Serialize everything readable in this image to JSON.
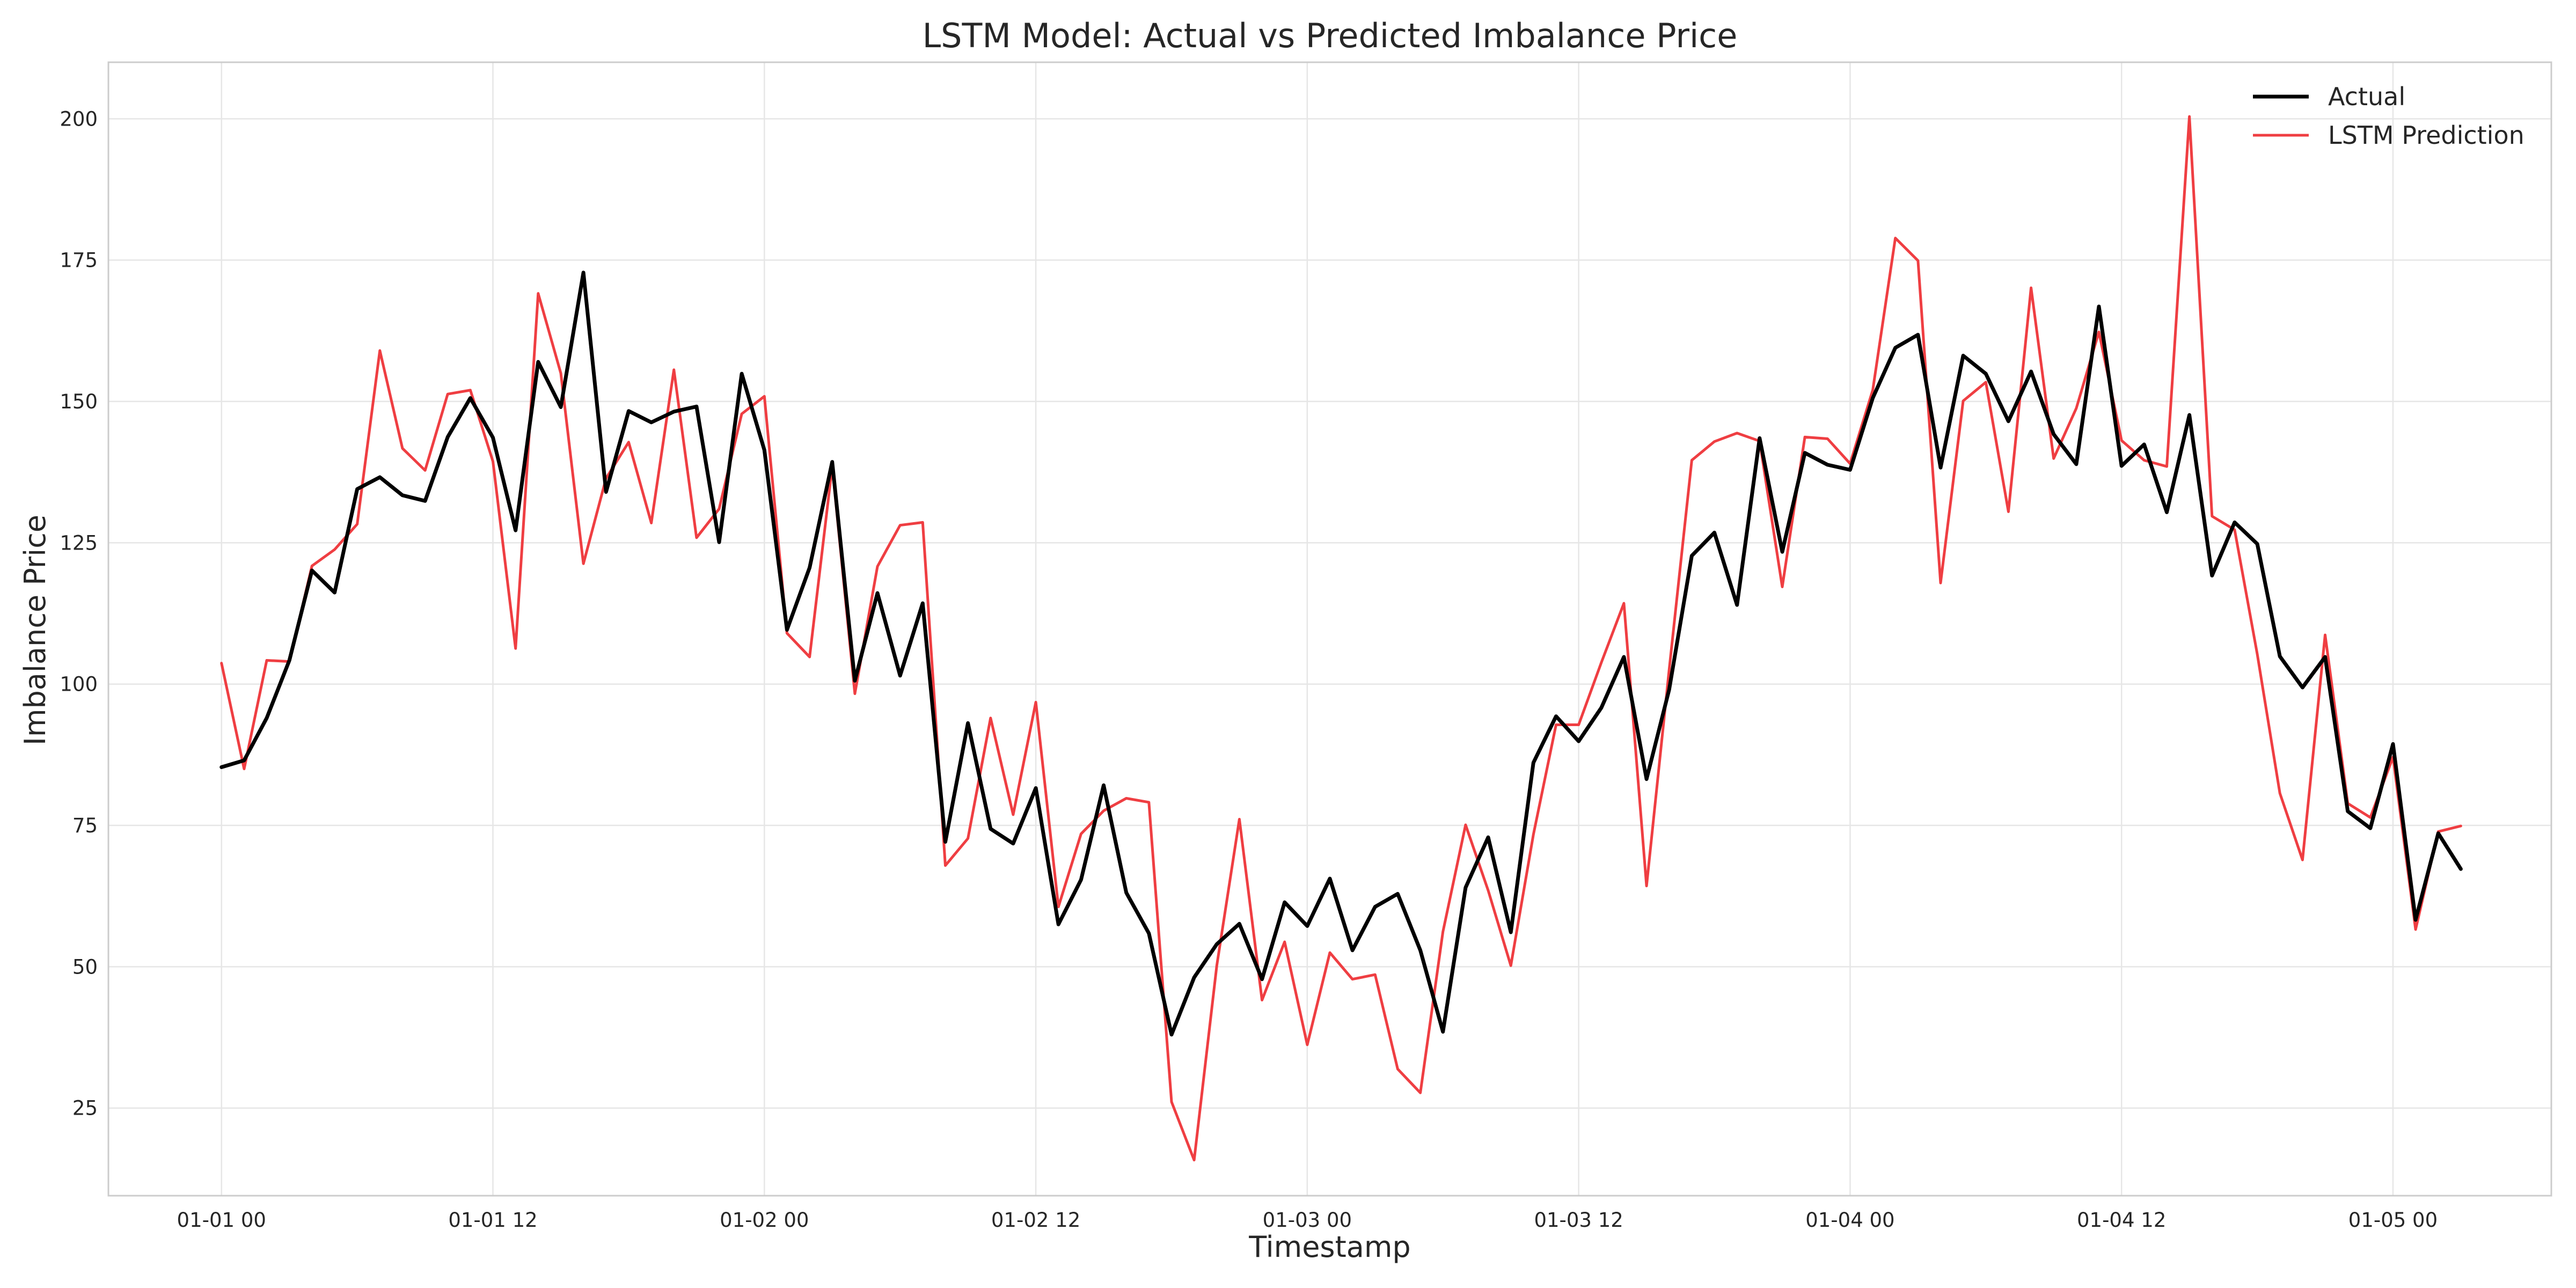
{
  "chart_data": {
    "type": "line",
    "title": "LSTM Model: Actual vs Predicted Imbalance Price",
    "xlabel": "Timestamp",
    "ylabel": "Imbalance Price",
    "x_start": "2024-01-01 00:00",
    "x_step_hours": 1,
    "xlim_hours": [
      -5,
      103
    ],
    "ylim": [
      9.5,
      210
    ],
    "x_ticks": [
      {
        "hour": 0,
        "label": "01-01 00"
      },
      {
        "hour": 12,
        "label": "01-01 12"
      },
      {
        "hour": 24,
        "label": "01-02 00"
      },
      {
        "hour": 36,
        "label": "01-02 12"
      },
      {
        "hour": 48,
        "label": "01-03 00"
      },
      {
        "hour": 60,
        "label": "01-03 12"
      },
      {
        "hour": 72,
        "label": "01-04 00"
      },
      {
        "hour": 84,
        "label": "01-04 12"
      },
      {
        "hour": 96,
        "label": "01-05 00"
      }
    ],
    "y_ticks": [
      25,
      50,
      75,
      100,
      125,
      150,
      175,
      200
    ],
    "grid": true,
    "legend_position": "top-right",
    "series": [
      {
        "name": "Actual",
        "color": "#000000",
        "values": [
          85.3,
          86.5,
          94.0,
          104.2,
          120.1,
          116.2,
          134.5,
          136.6,
          133.4,
          132.4,
          143.7,
          150.6,
          143.6,
          127.2,
          157.0,
          149.0,
          172.8,
          134.0,
          148.3,
          146.3,
          148.2,
          149.1,
          125.1,
          154.9,
          141.4,
          109.6,
          120.6,
          139.3,
          100.6,
          116.1,
          101.5,
          114.3,
          72.1,
          93.1,
          74.4,
          71.8,
          81.6,
          57.5,
          65.4,
          82.1,
          63.1,
          55.9,
          38.0,
          48.1,
          54.0,
          57.6,
          47.8,
          61.4,
          57.2,
          65.6,
          52.9,
          60.6,
          62.9,
          52.9,
          38.5,
          64.0,
          72.9,
          56.1,
          86.1,
          94.3,
          89.9,
          95.8,
          104.8,
          83.2,
          99.0,
          122.7,
          126.8,
          114.0,
          143.5,
          123.4,
          140.9,
          138.8,
          137.9,
          150.6,
          159.5,
          161.8,
          138.3,
          158.1,
          154.9,
          146.5,
          155.3,
          144.2,
          138.9,
          166.8,
          138.6,
          142.4,
          130.4,
          147.6,
          119.2,
          128.6,
          124.8,
          104.9,
          99.4,
          104.8,
          77.5,
          74.5,
          89.4,
          58.3,
          73.6,
          67.3
        ]
      },
      {
        "name": "LSTM Prediction",
        "color": "#ef3e42",
        "values": [
          103.7,
          85.0,
          104.2,
          104.0,
          120.9,
          123.8,
          128.3,
          159.0,
          141.7,
          137.8,
          151.3,
          152.0,
          139.4,
          106.3,
          169.1,
          155.0,
          121.3,
          136.4,
          142.8,
          128.5,
          155.6,
          125.9,
          131.0,
          147.8,
          150.9,
          109.0,
          104.8,
          138.5,
          98.3,
          120.8,
          128.1,
          128.6,
          67.9,
          72.7,
          94.0,
          76.9,
          96.8,
          60.6,
          73.5,
          77.6,
          79.8,
          79.1,
          26.1,
          15.8,
          50.2,
          76.1,
          44.1,
          54.4,
          36.2,
          52.5,
          47.8,
          48.6,
          31.9,
          27.7,
          56.2,
          75.1,
          63.5,
          50.2,
          73.4,
          92.8,
          92.8,
          103.8,
          114.3,
          64.3,
          102.5,
          139.6,
          142.9,
          144.4,
          143.0,
          117.2,
          143.7,
          143.4,
          139.0,
          152.0,
          178.9,
          174.9,
          117.9,
          150.1,
          153.4,
          130.5,
          170.1,
          139.9,
          148.8,
          162.3,
          143.1,
          139.6,
          138.5,
          200.4,
          129.7,
          127.3,
          105.3,
          80.7,
          68.9,
          108.7,
          78.9,
          76.4,
          87.1,
          56.6,
          73.9,
          74.9
        ]
      }
    ]
  }
}
